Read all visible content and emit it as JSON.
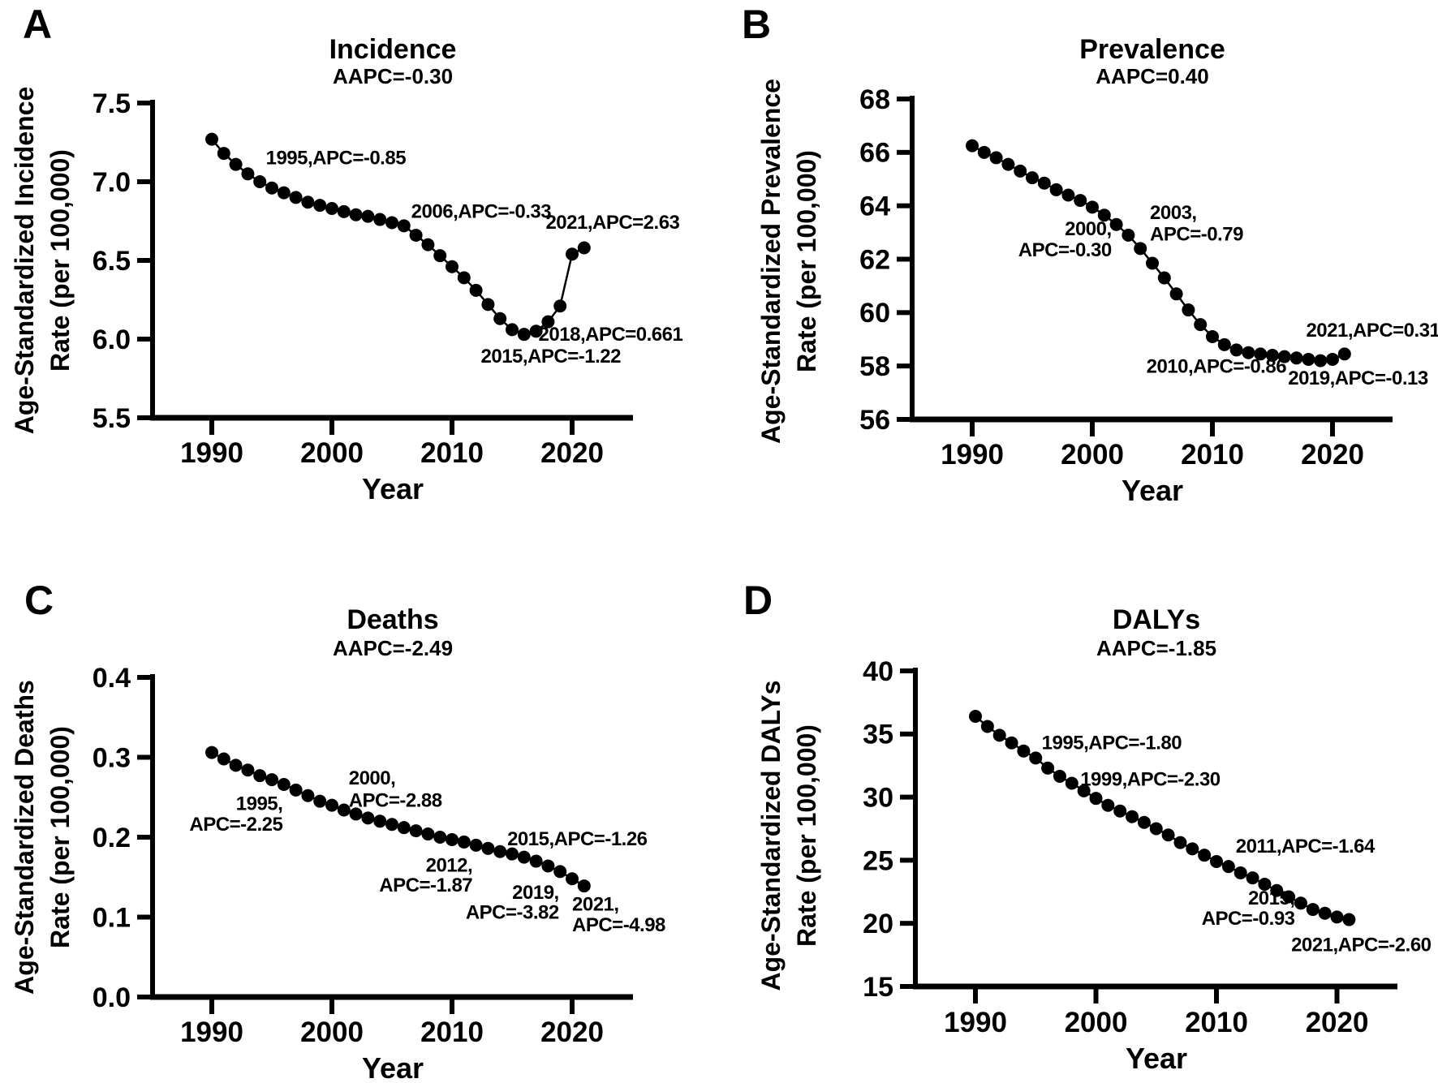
{
  "figure": {
    "background": "#ffffff",
    "text_color": "#000000",
    "marker_color": "#000000"
  },
  "chart_data": [
    {
      "panel_letter": "A",
      "type": "line",
      "title": "Incidence",
      "subtitle": "AAPC=-0.30",
      "ylabel_line1": "Age-Standardized Incidence",
      "ylabel_line2": "Rate (per 100,000)",
      "xlabel": "Year",
      "xlim": [
        1985,
        2025
      ],
      "ylim": [
        5.5,
        7.5
      ],
      "xticks": [
        1990,
        2000,
        2010,
        2020
      ],
      "xtick_labels": [
        "1990",
        "2000",
        "2010",
        "2020"
      ],
      "yticks": [
        5.5,
        6.0,
        6.5,
        7.0,
        7.5
      ],
      "ytick_labels": [
        "5.5",
        "6.0",
        "6.5",
        "7.0",
        "7.5"
      ],
      "x": [
        1990,
        1991,
        1992,
        1993,
        1994,
        1995,
        1996,
        1997,
        1998,
        1999,
        2000,
        2001,
        2002,
        2003,
        2004,
        2005,
        2006,
        2007,
        2008,
        2009,
        2010,
        2011,
        2012,
        2013,
        2014,
        2015,
        2016,
        2017,
        2018,
        2019,
        2020,
        2021
      ],
      "values": [
        7.27,
        7.18,
        7.11,
        7.05,
        7.0,
        6.96,
        6.93,
        6.9,
        6.87,
        6.85,
        6.83,
        6.81,
        6.79,
        6.78,
        6.76,
        6.74,
        6.72,
        6.66,
        6.6,
        6.53,
        6.46,
        6.39,
        6.31,
        6.22,
        6.13,
        6.06,
        6.03,
        6.05,
        6.11,
        6.21,
        6.54,
        6.58
      ],
      "annotations": [
        {
          "text": "1995,APC=-0.85",
          "x": 1994.5,
          "y": 7.11,
          "anchor": "start"
        },
        {
          "text": "2006,APC=-0.33",
          "x": 2006.6,
          "y": 6.77,
          "anchor": "start"
        },
        {
          "text": "2021,APC=2.63",
          "x": 2017.8,
          "y": 6.7,
          "anchor": "start"
        },
        {
          "text": "2018,APC=0.661",
          "x": 2017.2,
          "y": 5.99,
          "anchor": "start"
        },
        {
          "text": "2015,APC=-1.22",
          "x": 2012.4,
          "y": 5.85,
          "anchor": "start"
        }
      ]
    },
    {
      "panel_letter": "B",
      "type": "line",
      "title": "Prevalence",
      "subtitle": "AAPC=0.40",
      "ylabel_line1": "Age-Standardized Prevalence",
      "ylabel_line2": "Rate (per 100,000)",
      "xlabel": "Year",
      "xlim": [
        1985,
        2025
      ],
      "ylim": [
        56,
        68
      ],
      "xticks": [
        1990,
        2000,
        2010,
        2020
      ],
      "xtick_labels": [
        "1990",
        "2000",
        "2010",
        "2020"
      ],
      "yticks": [
        56,
        58,
        60,
        62,
        64,
        66,
        68
      ],
      "ytick_labels": [
        "56",
        "58",
        "60",
        "62",
        "64",
        "66",
        "68"
      ],
      "x": [
        1990,
        1991,
        1992,
        1993,
        1994,
        1995,
        1996,
        1997,
        1998,
        1999,
        2000,
        2001,
        2002,
        2003,
        2004,
        2005,
        2006,
        2007,
        2008,
        2009,
        2010,
        2011,
        2012,
        2013,
        2014,
        2015,
        2016,
        2017,
        2018,
        2019,
        2020,
        2021
      ],
      "values": [
        66.25,
        66.0,
        65.8,
        65.55,
        65.3,
        65.05,
        64.85,
        64.6,
        64.4,
        64.2,
        63.95,
        63.65,
        63.3,
        62.9,
        62.4,
        61.85,
        61.3,
        60.7,
        60.1,
        59.55,
        59.1,
        58.8,
        58.6,
        58.5,
        58.45,
        58.4,
        58.35,
        58.3,
        58.25,
        58.2,
        58.25,
        58.45
      ],
      "annotations": [
        {
          "text": "2000,",
          "x": 2001.6,
          "y": 62.9,
          "anchor": "end"
        },
        {
          "text": "APC=-0.30",
          "x": 2001.6,
          "y": 62.1,
          "anchor": "end"
        },
        {
          "text": "2003,",
          "x": 2004.8,
          "y": 63.5,
          "anchor": "start"
        },
        {
          "text": "APC=-0.79",
          "x": 2004.8,
          "y": 62.7,
          "anchor": "start"
        },
        {
          "text": "2010,APC=-0.86",
          "x": 2004.5,
          "y": 57.75,
          "anchor": "start"
        },
        {
          "text": "2019,APC=-0.13",
          "x": 2016.3,
          "y": 57.3,
          "anchor": "start"
        },
        {
          "text": "2021,APC=0.31",
          "x": 2017.8,
          "y": 59.1,
          "anchor": "start"
        }
      ]
    },
    {
      "panel_letter": "C",
      "type": "line",
      "title": "Deaths",
      "subtitle": "AAPC=-2.49",
      "ylabel_line1": "Age-Standardized Deaths",
      "ylabel_line2": "Rate (per 100,000)",
      "xlabel": "Year",
      "xlim": [
        1985,
        2025
      ],
      "ylim": [
        0.0,
        0.4
      ],
      "xticks": [
        1990,
        2000,
        2010,
        2020
      ],
      "xtick_labels": [
        "1990",
        "2000",
        "2010",
        "2020"
      ],
      "yticks": [
        0.0,
        0.1,
        0.2,
        0.3,
        0.4
      ],
      "ytick_labels": [
        "0.0",
        "0.1",
        "0.2",
        "0.3",
        "0.4"
      ],
      "x": [
        1990,
        1991,
        1992,
        1993,
        1994,
        1995,
        1996,
        1997,
        1998,
        1999,
        2000,
        2001,
        2002,
        2003,
        2004,
        2005,
        2006,
        2007,
        2008,
        2009,
        2010,
        2011,
        2012,
        2013,
        2014,
        2015,
        2016,
        2017,
        2018,
        2019,
        2020,
        2021
      ],
      "values": [
        0.306,
        0.298,
        0.29,
        0.284,
        0.277,
        0.272,
        0.266,
        0.259,
        0.252,
        0.245,
        0.24,
        0.234,
        0.229,
        0.224,
        0.22,
        0.216,
        0.212,
        0.208,
        0.204,
        0.2,
        0.197,
        0.194,
        0.19,
        0.186,
        0.182,
        0.179,
        0.175,
        0.17,
        0.164,
        0.157,
        0.148,
        0.139
      ],
      "annotations": [
        {
          "text": "1995,",
          "x": 1995.9,
          "y": 0.234,
          "anchor": "end"
        },
        {
          "text": "APC=-2.25",
          "x": 1995.9,
          "y": 0.208,
          "anchor": "end"
        },
        {
          "text": "2000,",
          "x": 2001.4,
          "y": 0.266,
          "anchor": "start"
        },
        {
          "text": "APC=-2.88",
          "x": 2001.4,
          "y": 0.238,
          "anchor": "start"
        },
        {
          "text": "2012,",
          "x": 2011.7,
          "y": 0.157,
          "anchor": "end"
        },
        {
          "text": "APC=-1.87",
          "x": 2011.7,
          "y": 0.132,
          "anchor": "end"
        },
        {
          "text": "2015,APC=-1.26",
          "x": 2014.6,
          "y": 0.19,
          "anchor": "start"
        },
        {
          "text": "2019,",
          "x": 2018.9,
          "y": 0.123,
          "anchor": "end"
        },
        {
          "text": "APC=-3.82",
          "x": 2018.9,
          "y": 0.098,
          "anchor": "end"
        },
        {
          "text": "2021,",
          "x": 2020.0,
          "y": 0.108,
          "anchor": "start"
        },
        {
          "text": "APC=-4.98",
          "x": 2020.0,
          "y": 0.082,
          "anchor": "start"
        }
      ]
    },
    {
      "panel_letter": "D",
      "type": "line",
      "title": "DALYs",
      "subtitle": "AAPC=-1.85",
      "ylabel_line1": "Age-Standardized DALYs",
      "ylabel_line2": "Rate (per 100,000)",
      "xlabel": "Year",
      "xlim": [
        1985,
        2025
      ],
      "ylim": [
        15,
        40
      ],
      "xticks": [
        1990,
        2000,
        2010,
        2020
      ],
      "xtick_labels": [
        "1990",
        "2000",
        "2010",
        "2020"
      ],
      "yticks": [
        15,
        20,
        25,
        30,
        35,
        40
      ],
      "ytick_labels": [
        "15",
        "20",
        "25",
        "30",
        "35",
        "40"
      ],
      "x": [
        1990,
        1991,
        1992,
        1993,
        1994,
        1995,
        1996,
        1997,
        1998,
        1999,
        2000,
        2001,
        2002,
        2003,
        2004,
        2005,
        2006,
        2007,
        2008,
        2009,
        2010,
        2011,
        2012,
        2013,
        2014,
        2015,
        2016,
        2017,
        2018,
        2019,
        2020,
        2021
      ],
      "values": [
        36.4,
        35.6,
        34.9,
        34.3,
        33.65,
        33.1,
        32.3,
        31.65,
        31.1,
        30.5,
        29.9,
        29.35,
        28.9,
        28.45,
        28.0,
        27.5,
        27.0,
        26.4,
        25.9,
        25.4,
        24.9,
        24.5,
        24.0,
        23.6,
        23.1,
        22.6,
        22.1,
        21.6,
        21.1,
        20.8,
        20.5,
        20.3
      ],
      "annotations": [
        {
          "text": "1995,APC=-1.80",
          "x": 1995.5,
          "y": 33.8,
          "anchor": "start"
        },
        {
          "text": "1999,APC=-2.30",
          "x": 1998.7,
          "y": 30.9,
          "anchor": "start"
        },
        {
          "text": "2011,APC=-1.64",
          "x": 2011.6,
          "y": 25.6,
          "anchor": "start"
        },
        {
          "text": "2015,",
          "x": 2016.5,
          "y": 21.5,
          "anchor": "end"
        },
        {
          "text": "APC=-0.93",
          "x": 2016.5,
          "y": 19.9,
          "anchor": "end"
        },
        {
          "text": "2021,APC=-2.60",
          "x": 2016.2,
          "y": 17.8,
          "anchor": "start"
        }
      ]
    }
  ]
}
